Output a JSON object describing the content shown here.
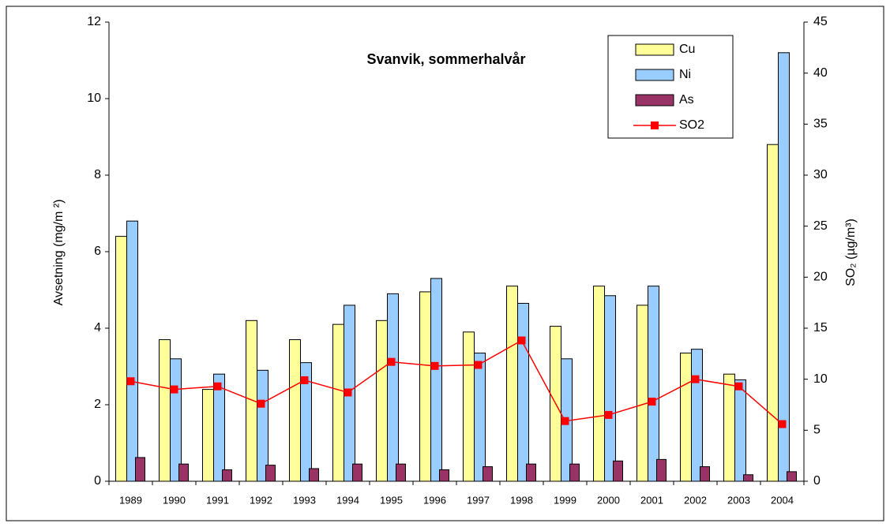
{
  "chart_data": {
    "type": "bar",
    "title": "Svanvik, sommerhalvår",
    "y_label": "Avsetning (mg/m ²)",
    "y2_label": "SO₂ (µg/m³)",
    "categories": [
      "1989",
      "1990",
      "1991",
      "1992",
      "1993",
      "1994",
      "1995",
      "1996",
      "1997",
      "1998",
      "1999",
      "2000",
      "2001",
      "2002",
      "2003",
      "2004"
    ],
    "series": [
      {
        "name": "Cu",
        "type": "bar",
        "color": "#ffff99",
        "values": [
          6.4,
          3.7,
          2.4,
          4.2,
          3.7,
          4.1,
          4.2,
          4.95,
          3.9,
          5.1,
          4.05,
          5.1,
          4.6,
          3.35,
          2.8,
          8.8
        ]
      },
      {
        "name": "Ni",
        "type": "bar",
        "color": "#99ccff",
        "values": [
          6.8,
          3.2,
          2.8,
          2.9,
          3.1,
          4.6,
          4.9,
          5.3,
          3.35,
          4.65,
          3.2,
          4.85,
          5.1,
          3.45,
          2.65,
          11.2
        ]
      },
      {
        "name": "As",
        "type": "bar",
        "color": "#993366",
        "values": [
          0.62,
          0.45,
          0.3,
          0.42,
          0.33,
          0.45,
          0.45,
          0.3,
          0.38,
          0.45,
          0.45,
          0.53,
          0.57,
          0.38,
          0.17,
          0.25
        ]
      },
      {
        "name": "SO2",
        "type": "line",
        "axis": "y2",
        "color": "#ff0000",
        "values": [
          9.8,
          9.0,
          9.3,
          7.6,
          9.9,
          8.7,
          11.7,
          11.3,
          11.4,
          13.8,
          5.9,
          6.5,
          7.8,
          10.0,
          9.3,
          5.6
        ]
      }
    ],
    "ylim": [
      0,
      12
    ],
    "yticks": [
      0,
      2,
      4,
      6,
      8,
      10,
      12
    ],
    "y2lim": [
      0,
      45
    ],
    "y2ticks": [
      0,
      5,
      10,
      15,
      20,
      25,
      30,
      35,
      40,
      45
    ],
    "grid": false,
    "legend": "upper right"
  }
}
